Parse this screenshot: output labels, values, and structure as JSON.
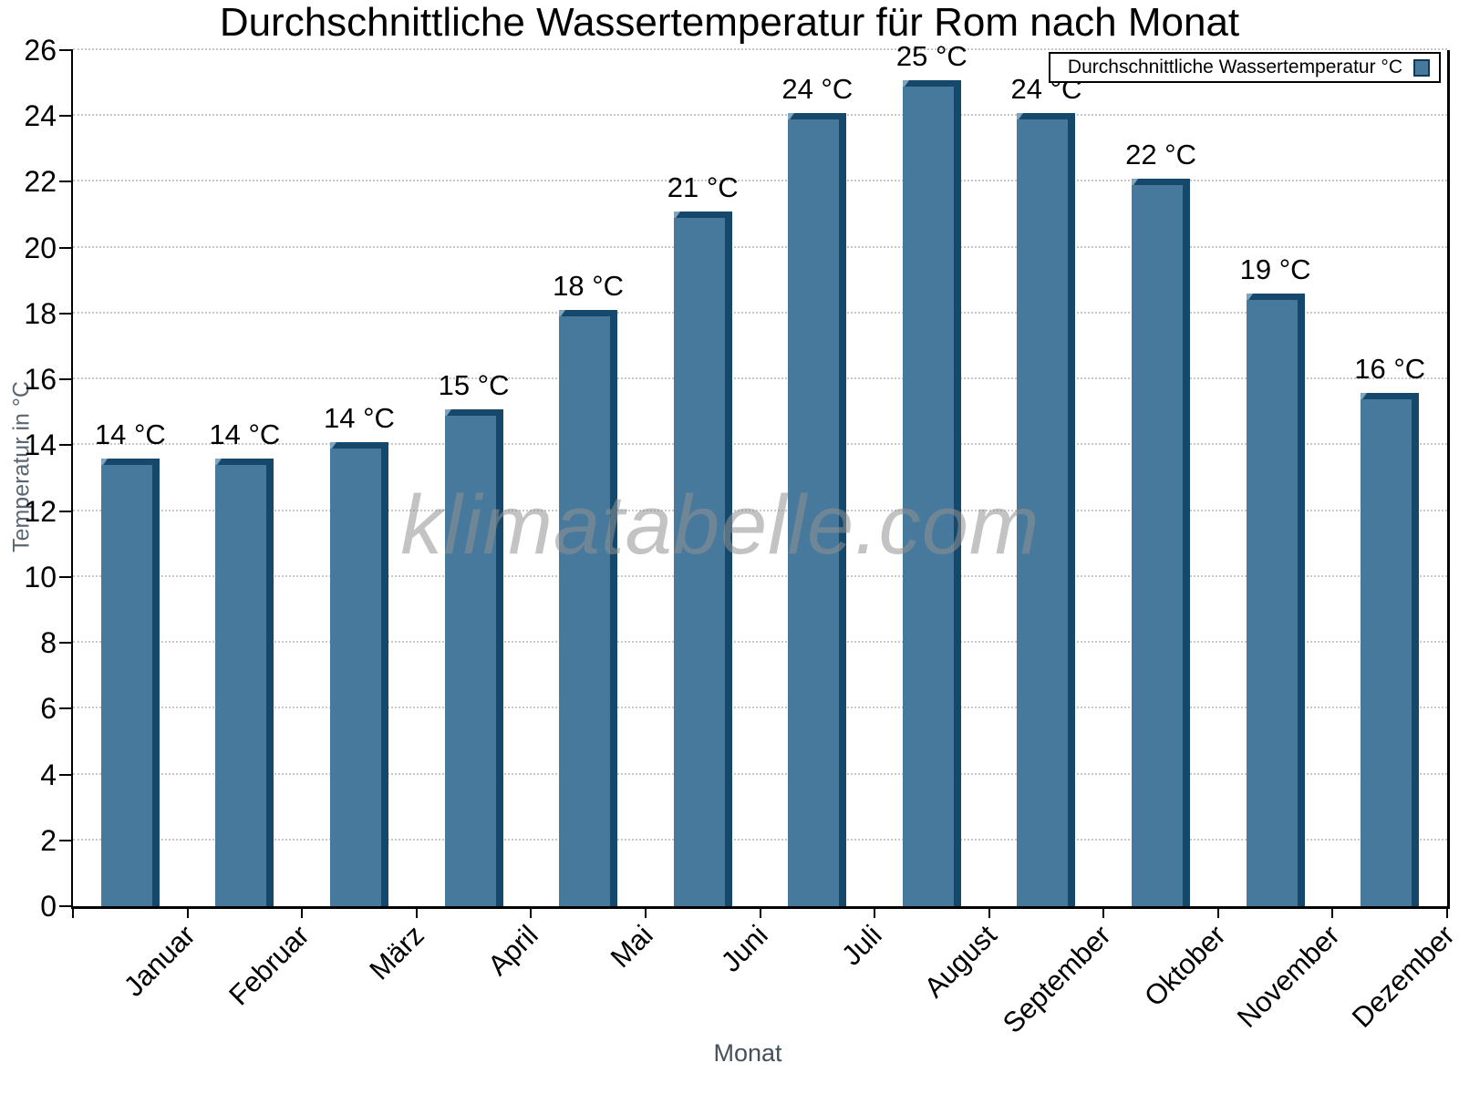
{
  "page": {
    "watermark": "klimatabelle.com"
  },
  "chart_data": {
    "type": "bar",
    "title": "Durchschnittliche Wassertemperatur für Rom nach Monat",
    "xlabel": "Monat",
    "ylabel": "Temperatur in °C",
    "categories": [
      "Januar",
      "Februar",
      "März",
      "April",
      "Mai",
      "Juni",
      "Juli",
      "August",
      "September",
      "Oktober",
      "November",
      "Dezember"
    ],
    "values": [
      13.6,
      13.6,
      14.1,
      15.1,
      18.1,
      21.1,
      24.1,
      25.1,
      24.1,
      22.1,
      18.6,
      15.6
    ],
    "bar_labels": [
      "14 °C",
      "14 °C",
      "14 °C",
      "15 °C",
      "18 °C",
      "21 °C",
      "24 °C",
      "25 °C",
      "24 °C",
      "22 °C",
      "19 °C",
      "16 °C"
    ],
    "legend": [
      "Durchschnittliche Wassertemperatur °C"
    ],
    "legend_position": "top-right",
    "ylim": [
      0,
      26
    ],
    "yticks": [
      0,
      2,
      4,
      6,
      8,
      10,
      12,
      14,
      16,
      18,
      20,
      22,
      24,
      26
    ],
    "grid": "horizontal-dotted",
    "colors": {
      "bar_face": "#46799B",
      "bar_edge_dark": "#16486B",
      "bar_bevel_light": "#7FA5BE",
      "grid_line": "#c8c8c8",
      "axis_line": "#000000",
      "axis_title_text": "#5a6672",
      "label_text": "#000000",
      "watermark_text": "#919191"
    }
  }
}
